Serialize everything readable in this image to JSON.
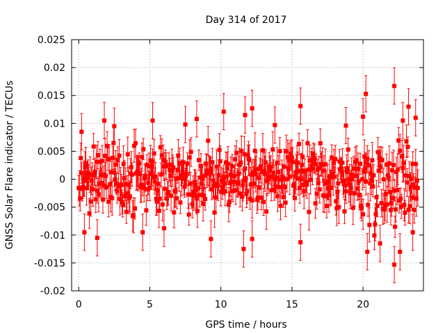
{
  "chart_data": {
    "type": "scatter",
    "title": "Day 314 of 2017",
    "xlabel": "GPS time / hours",
    "ylabel": "GNSS Solar Flare indicator / TECUs",
    "xlim": [
      -0.5,
      24.25
    ],
    "ylim": [
      -0.02,
      0.025
    ],
    "x_ticks": [
      0,
      5,
      10,
      15,
      20
    ],
    "x_tick_labels": [
      "0",
      "5",
      "10",
      "15",
      "20"
    ],
    "y_ticks": [
      -0.02,
      -0.015,
      -0.01,
      -0.005,
      0,
      0.005,
      0.01,
      0.015,
      0.02,
      0.025
    ],
    "y_tick_labels": [
      "-0.02",
      "-0.015",
      "-0.01",
      "-0.005",
      "0",
      "0.005",
      "0.01",
      "0.015",
      "0.02",
      "0.025"
    ],
    "grid": true,
    "series": [
      {
        "name": "GNSS Solar Flare indicator",
        "color": "#ff0000",
        "marker": "square",
        "error_bars": true,
        "x_start": 0.0,
        "x_end": 23.9,
        "x_step": 0.00833,
        "typical_range": [
          -0.008,
          0.009
        ],
        "typical_error": 0.0025,
        "notable_points": [
          {
            "x": 0.2,
            "y": 0.0085
          },
          {
            "x": 0.4,
            "y": -0.0095
          },
          {
            "x": 1.3,
            "y": -0.0105
          },
          {
            "x": 1.8,
            "y": 0.0105
          },
          {
            "x": 2.5,
            "y": 0.0095
          },
          {
            "x": 4.5,
            "y": -0.0095
          },
          {
            "x": 5.2,
            "y": 0.0105
          },
          {
            "x": 6.0,
            "y": -0.0088
          },
          {
            "x": 7.5,
            "y": 0.0098
          },
          {
            "x": 8.3,
            "y": 0.0108
          },
          {
            "x": 9.3,
            "y": -0.0107
          },
          {
            "x": 10.2,
            "y": 0.0121
          },
          {
            "x": 11.6,
            "y": -0.0125
          },
          {
            "x": 11.7,
            "y": 0.0115
          },
          {
            "x": 12.2,
            "y": 0.0127
          },
          {
            "x": 12.2,
            "y": -0.0107
          },
          {
            "x": 13.8,
            "y": 0.0097
          },
          {
            "x": 15.6,
            "y": 0.0131
          },
          {
            "x": 15.6,
            "y": -0.0113
          },
          {
            "x": 18.8,
            "y": 0.0096
          },
          {
            "x": 20.0,
            "y": 0.0112
          },
          {
            "x": 20.2,
            "y": 0.0153
          },
          {
            "x": 20.3,
            "y": -0.013
          },
          {
            "x": 21.2,
            "y": -0.0115
          },
          {
            "x": 22.2,
            "y": 0.0167
          },
          {
            "x": 22.2,
            "y": -0.0153
          },
          {
            "x": 22.6,
            "y": -0.013
          },
          {
            "x": 22.8,
            "y": 0.0105
          },
          {
            "x": 23.2,
            "y": 0.013
          },
          {
            "x": 23.7,
            "y": 0.011
          },
          {
            "x": 23.5,
            "y": -0.0095
          }
        ]
      }
    ]
  }
}
